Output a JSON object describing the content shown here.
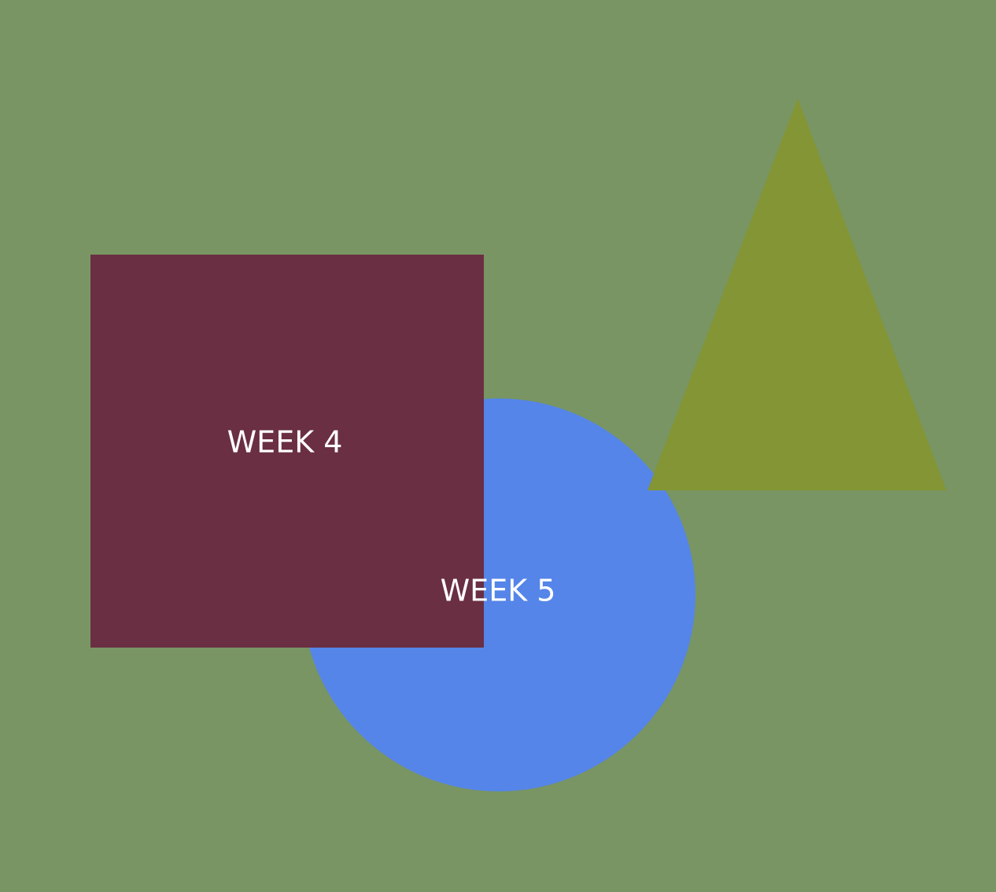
{
  "shapes": {
    "circle": {
      "label": "WEEK 5",
      "color": "#5585E8"
    },
    "square": {
      "label": "WEEK 4",
      "color": "#6A2F43"
    },
    "triangle": {
      "color": "#839535"
    }
  },
  "colors": {
    "background": "#799563"
  }
}
